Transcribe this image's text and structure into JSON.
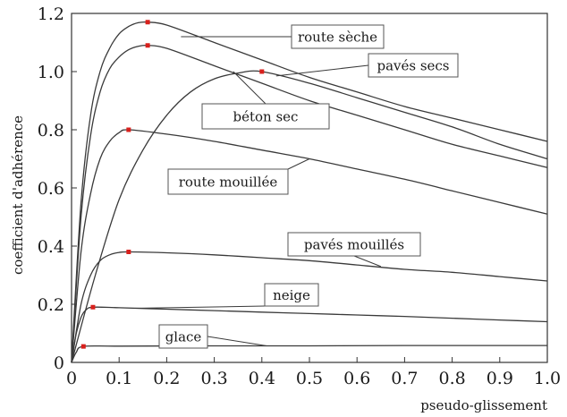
{
  "chart_data": {
    "type": "line",
    "xlabel": "pseudo-glissement",
    "ylabel": "coefficient d'adhérence",
    "xlim": [
      0,
      1.0
    ],
    "ylim": [
      0,
      1.2
    ],
    "x_ticks": [
      "0",
      "0.1",
      "0.2",
      "0.3",
      "0.4",
      "0.5",
      "0.6",
      "0.7",
      "0.8",
      "0.9",
      "1.0"
    ],
    "y_ticks": [
      "0",
      "0.2",
      "0.4",
      "0.6",
      "0.8",
      "1.0",
      "1.2"
    ],
    "grid": false,
    "series": [
      {
        "name": "route sèche",
        "peak": [
          0.16,
          1.17
        ],
        "x": [
          0,
          0.02,
          0.04,
          0.06,
          0.08,
          0.1,
          0.12,
          0.14,
          0.16,
          0.2,
          0.3,
          0.4,
          0.5,
          0.6,
          0.7,
          0.8,
          0.9,
          1.0
        ],
        "y": [
          0,
          0.55,
          0.85,
          1.0,
          1.08,
          1.13,
          1.155,
          1.168,
          1.17,
          1.16,
          1.1,
          1.04,
          0.98,
          0.93,
          0.88,
          0.84,
          0.8,
          0.76
        ]
      },
      {
        "name": "béton sec",
        "peak": [
          0.16,
          1.09
        ],
        "x": [
          0,
          0.02,
          0.04,
          0.06,
          0.08,
          0.1,
          0.12,
          0.14,
          0.16,
          0.2,
          0.3,
          0.4,
          0.5,
          0.6,
          0.7,
          0.8,
          0.9,
          1.0
        ],
        "y": [
          0,
          0.5,
          0.78,
          0.93,
          1.01,
          1.05,
          1.075,
          1.087,
          1.09,
          1.08,
          1.02,
          0.96,
          0.9,
          0.85,
          0.8,
          0.75,
          0.71,
          0.67
        ]
      },
      {
        "name": "pavés secs",
        "peak": [
          0.4,
          1.0
        ],
        "x": [
          0,
          0.05,
          0.1,
          0.15,
          0.2,
          0.25,
          0.3,
          0.35,
          0.4,
          0.5,
          0.6,
          0.7,
          0.8,
          0.9,
          1.0
        ],
        "y": [
          0,
          0.3,
          0.56,
          0.73,
          0.85,
          0.93,
          0.975,
          0.995,
          1.0,
          0.96,
          0.91,
          0.86,
          0.81,
          0.75,
          0.7
        ]
      },
      {
        "name": "route mouillée",
        "peak": [
          0.12,
          0.8
        ],
        "x": [
          0,
          0.02,
          0.04,
          0.06,
          0.08,
          0.1,
          0.12,
          0.2,
          0.3,
          0.4,
          0.5,
          0.6,
          0.7,
          0.8,
          0.9,
          1.0
        ],
        "y": [
          0,
          0.38,
          0.58,
          0.7,
          0.76,
          0.79,
          0.8,
          0.785,
          0.76,
          0.73,
          0.7,
          0.665,
          0.63,
          0.59,
          0.55,
          0.51
        ]
      },
      {
        "name": "pavés mouillés",
        "peak": [
          0.12,
          0.38
        ],
        "x": [
          0,
          0.02,
          0.04,
          0.06,
          0.08,
          0.1,
          0.12,
          0.2,
          0.3,
          0.4,
          0.5,
          0.6,
          0.7,
          0.8,
          0.9,
          1.0
        ],
        "y": [
          0,
          0.2,
          0.3,
          0.35,
          0.37,
          0.378,
          0.38,
          0.377,
          0.37,
          0.36,
          0.35,
          0.335,
          0.32,
          0.31,
          0.295,
          0.28
        ]
      },
      {
        "name": "neige",
        "peak": [
          0.045,
          0.19
        ],
        "x": [
          0,
          0.01,
          0.02,
          0.03,
          0.045,
          0.1,
          0.2,
          0.3,
          0.4,
          0.5,
          0.6,
          0.7,
          0.8,
          0.9,
          1.0
        ],
        "y": [
          0,
          0.1,
          0.155,
          0.18,
          0.19,
          0.188,
          0.183,
          0.178,
          0.173,
          0.168,
          0.163,
          0.158,
          0.152,
          0.146,
          0.14
        ]
      },
      {
        "name": "glace",
        "peak": [
          0.025,
          0.055
        ],
        "x": [
          0,
          0.01,
          0.025,
          0.1,
          0.3,
          0.5,
          0.7,
          1.0
        ],
        "y": [
          0,
          0.035,
          0.055,
          0.056,
          0.057,
          0.057,
          0.058,
          0.058
        ]
      }
    ],
    "labels": [
      {
        "series": "route sèche",
        "text": "route sèche"
      },
      {
        "series": "pavés secs",
        "text": "pavés secs"
      },
      {
        "series": "béton sec",
        "text": "béton sec"
      },
      {
        "series": "route mouillée",
        "text": "route mouillée"
      },
      {
        "series": "pavés mouillés",
        "text": "pavés mouillés"
      },
      {
        "series": "neige",
        "text": "neige"
      },
      {
        "series": "glace",
        "text": "glace"
      }
    ],
    "colors": {
      "curve": "#3a3a3a",
      "peak_marker": "#d8201c",
      "axis": "#333333",
      "background": "#ffffff"
    }
  }
}
